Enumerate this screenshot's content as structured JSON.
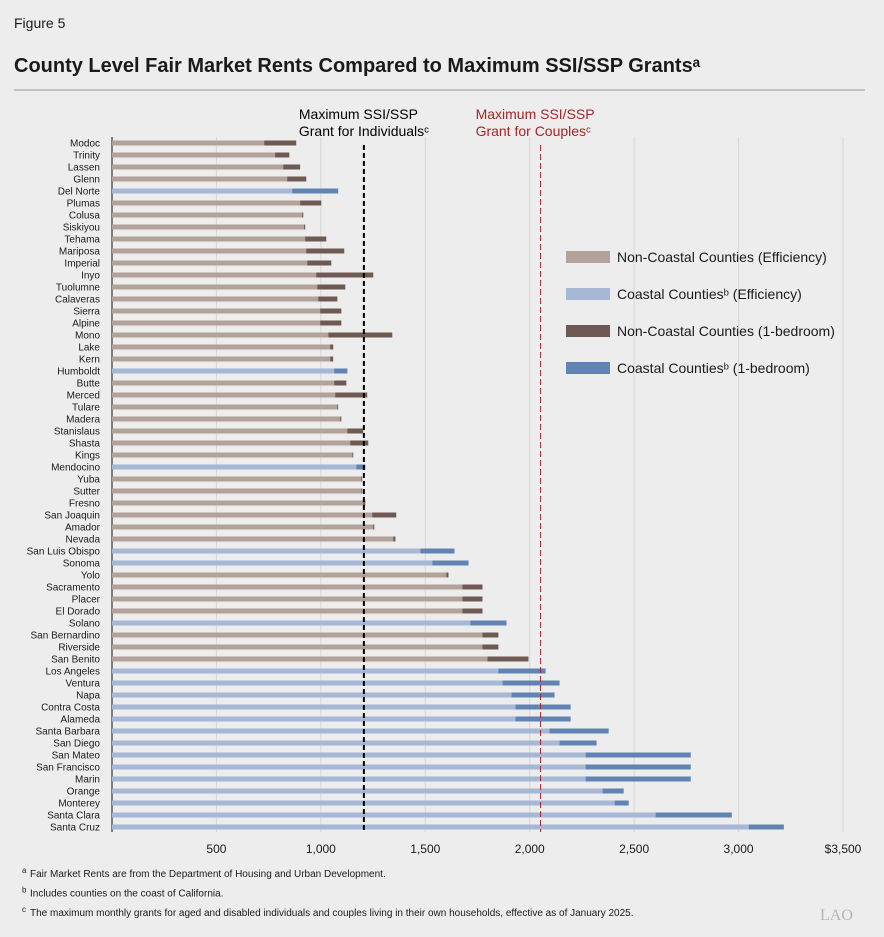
{
  "figure_label": "Figure 5",
  "chart_data": {
    "type": "bar",
    "orientation": "horizontal",
    "title": "County Level Fair Market Rents Compared to Maximum SSI/SSP Grantsᵃ",
    "categories": [
      "Modoc",
      "Trinity",
      "Lassen",
      "Glenn",
      "Del Norte",
      "Plumas",
      "Colusa",
      "Siskiyou",
      "Tehama",
      "Mariposa",
      "Imperial",
      "Inyo",
      "Tuolumne",
      "Calaveras",
      "Sierra",
      "Alpine",
      "Mono",
      "Lake",
      "Kern",
      "Humboldt",
      "Butte",
      "Merced",
      "Tulare",
      "Madera",
      "Stanislaus",
      "Shasta",
      "Kings",
      "Mendocino",
      "Yuba",
      "Sutter",
      "Fresno",
      "San Joaquin",
      "Amador",
      "Nevada",
      "San Luis Obispo",
      "Sonoma",
      "Yolo",
      "Sacramento",
      "Placer",
      "El Dorado",
      "Solano",
      "San Bernardino",
      "Riverside",
      "San Benito",
      "Los Angeles",
      "Ventura",
      "Napa",
      "Contra Costa",
      "Alameda",
      "Santa Barbara",
      "San Diego",
      "San Mateo",
      "San Francisco",
      "Marin",
      "Orange",
      "Monterey",
      "Santa Clara",
      "Santa Cruz"
    ],
    "series": [
      {
        "name": "Non-Coastal Counties (1-bedroom)",
        "color": "#6e5a52",
        "values": [
          882,
          849,
          901,
          930,
          null,
          1002,
          916,
          925,
          1026,
          1112,
          1050,
          1251,
          1117,
          1079,
          1098,
          1098,
          1342,
          1059,
          1059,
          null,
          1122,
          1222,
          1083,
          1098,
          1203,
          1227,
          1155,
          null,
          1198,
          1198,
          1213,
          1361,
          1256,
          1357,
          null,
          null,
          1611,
          1774,
          1774,
          1774,
          null,
          1850,
          1850,
          1994,
          null,
          null,
          null,
          null,
          null,
          null,
          null,
          null,
          null,
          null,
          null,
          null,
          null,
          null
        ]
      },
      {
        "name": "Coastal Countiesᵇ (1-bedroom)",
        "color": "#6184b4",
        "values": [
          null,
          null,
          null,
          null,
          1083,
          null,
          null,
          null,
          null,
          null,
          null,
          null,
          null,
          null,
          null,
          null,
          null,
          null,
          null,
          1127,
          null,
          null,
          null,
          null,
          null,
          null,
          null,
          1213,
          null,
          null,
          null,
          null,
          null,
          null,
          1640,
          1707,
          null,
          null,
          null,
          null,
          1889,
          null,
          null,
          null,
          2076,
          2143,
          2119,
          2196,
          2196,
          2378,
          2320,
          2771,
          2771,
          2771,
          2450,
          2474,
          2968,
          3217
        ]
      },
      {
        "name": "Non-Coastal Counties (Efficiency)",
        "color": "#b3a29a",
        "values": [
          729,
          781,
          820,
          839,
          null,
          901,
          911,
          920,
          925,
          930,
          935,
          978,
          983,
          988,
          997,
          997,
          1036,
          1045,
          1045,
          null,
          1064,
          1069,
          1079,
          1093,
          1127,
          1141,
          1151,
          null,
          1194,
          1194,
          1203,
          1246,
          1251,
          1347,
          null,
          null,
          1601,
          1678,
          1678,
          1678,
          null,
          1774,
          1774,
          1798,
          null,
          null,
          null,
          null,
          null,
          null,
          null,
          null,
          null,
          null,
          null,
          null,
          null,
          null
        ]
      },
      {
        "name": "Coastal Countiesᵇ (Efficiency)",
        "color": "#a7b8d6",
        "values": [
          null,
          null,
          null,
          null,
          863,
          null,
          null,
          null,
          null,
          null,
          null,
          null,
          null,
          null,
          null,
          null,
          null,
          null,
          null,
          1064,
          null,
          null,
          null,
          null,
          null,
          null,
          null,
          1170,
          null,
          null,
          null,
          null,
          null,
          null,
          1477,
          1534,
          null,
          null,
          null,
          null,
          1716,
          null,
          null,
          null,
          1850,
          1870,
          1913,
          1932,
          1932,
          2095,
          2143,
          2268,
          2268,
          2268,
          2349,
          2407,
          2603,
          3049
        ]
      }
    ],
    "legend_order": [
      2,
      3,
      0,
      1
    ],
    "xlim": [
      0,
      3500
    ],
    "xticks": [
      500,
      {
        "value": 1000,
        "label": "1,000"
      },
      {
        "value": 1500,
        "label": "1,500"
      },
      {
        "value": 2000,
        "label": "2,000"
      },
      {
        "value": 2500,
        "label": "2,500"
      },
      {
        "value": 3000,
        "label": "3,000"
      },
      {
        "value": 3500,
        "label": "$3,500"
      }
    ],
    "grid": true,
    "reference_lines": [
      {
        "value": 1206,
        "lines": [
          "Maximum SSI/SSP",
          "Grant for Individualsᶜ"
        ],
        "color": "#000000"
      },
      {
        "value": 2052,
        "lines": [
          "Maximum SSI/SSP",
          "Grant for Couplesᶜ"
        ],
        "color": "#a3272a"
      }
    ]
  },
  "footnotes": [
    {
      "marker": "a",
      "text": "Fair Market Rents are from the Department of Housing and Urban Development."
    },
    {
      "marker": "b",
      "text": "Includes counties on the coast of California."
    },
    {
      "marker": "c",
      "text": "The maximum monthly grants for aged and disabled individuals and couples living in their own households, effective as of January 2025."
    }
  ],
  "logo": "LAO"
}
